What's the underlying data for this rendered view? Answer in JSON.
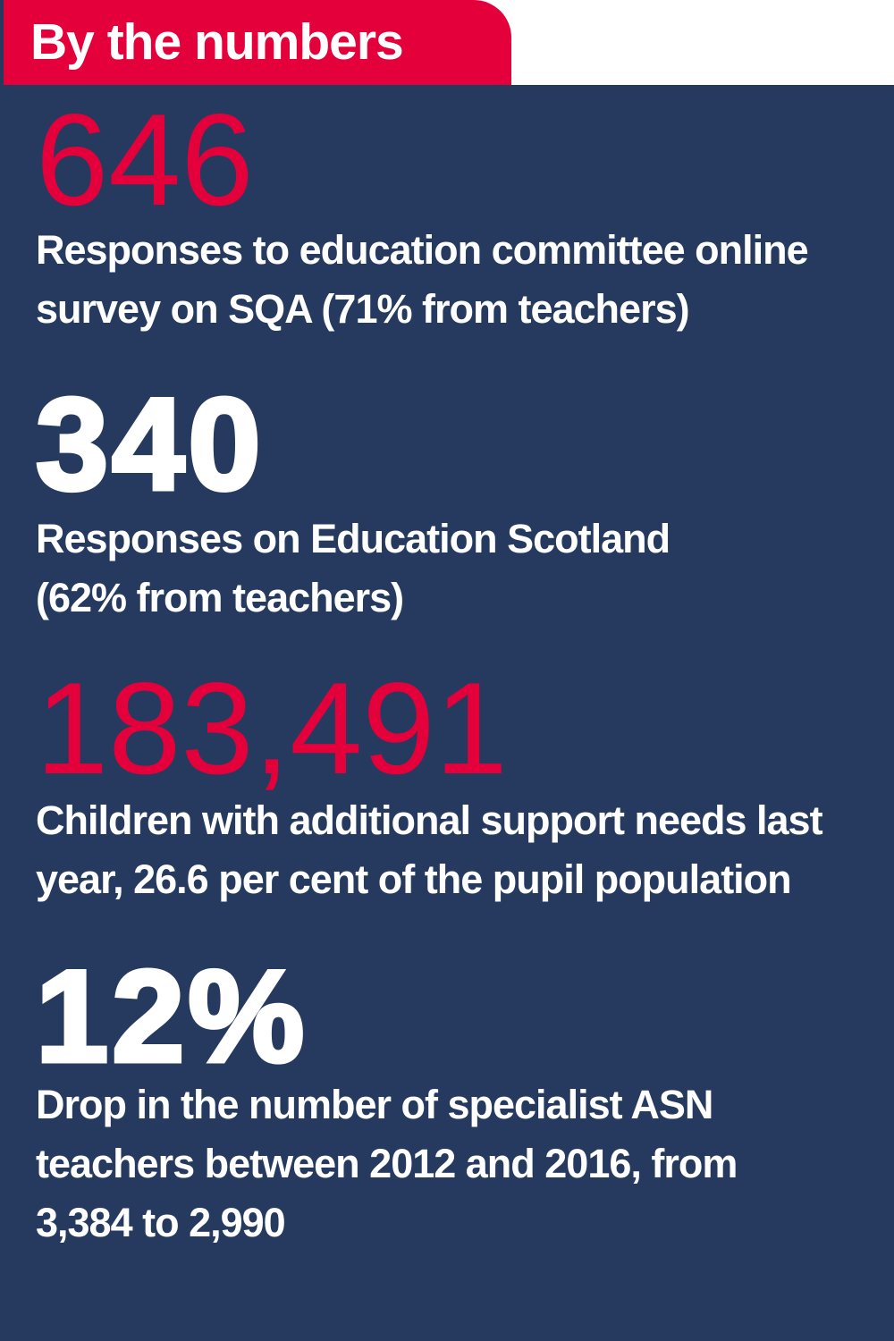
{
  "colors": {
    "background_navy": "#253A5E",
    "banner_red": "#E4003B",
    "number_red": "#E4003B",
    "text_white": "#FFFFFF"
  },
  "header": {
    "title": "By the numbers"
  },
  "stats": [
    {
      "value": "646",
      "style": "red-light",
      "description": "Responses to education committee online\nsurvey on SQA (71% from teachers)"
    },
    {
      "value": "340",
      "style": "white-heavy",
      "description": "Responses on Education Scotland\n(62% from teachers)"
    },
    {
      "value": "183,491",
      "style": "red-light",
      "description": "Children with additional support needs last\nyear, 26.6 per cent of the pupil population"
    },
    {
      "value": "12%",
      "style": "white-heavy",
      "description": "Drop in the number of specialist ASN\nteachers between 2012 and 2016, from\n3,384 to 2,990"
    }
  ],
  "chart_data": {
    "type": "table",
    "title": "By the numbers",
    "rows": [
      {
        "value": 646,
        "label": "Responses to education committee online survey on SQA (71% from teachers)"
      },
      {
        "value": 340,
        "label": "Responses on Education Scotland (62% from teachers)"
      },
      {
        "value": 183491,
        "label": "Children with additional support needs last year, 26.6 per cent of the pupil population"
      },
      {
        "value": "12%",
        "label": "Drop in the number of specialist ASN teachers between 2012 and 2016, from 3,384 to 2,990"
      }
    ]
  }
}
